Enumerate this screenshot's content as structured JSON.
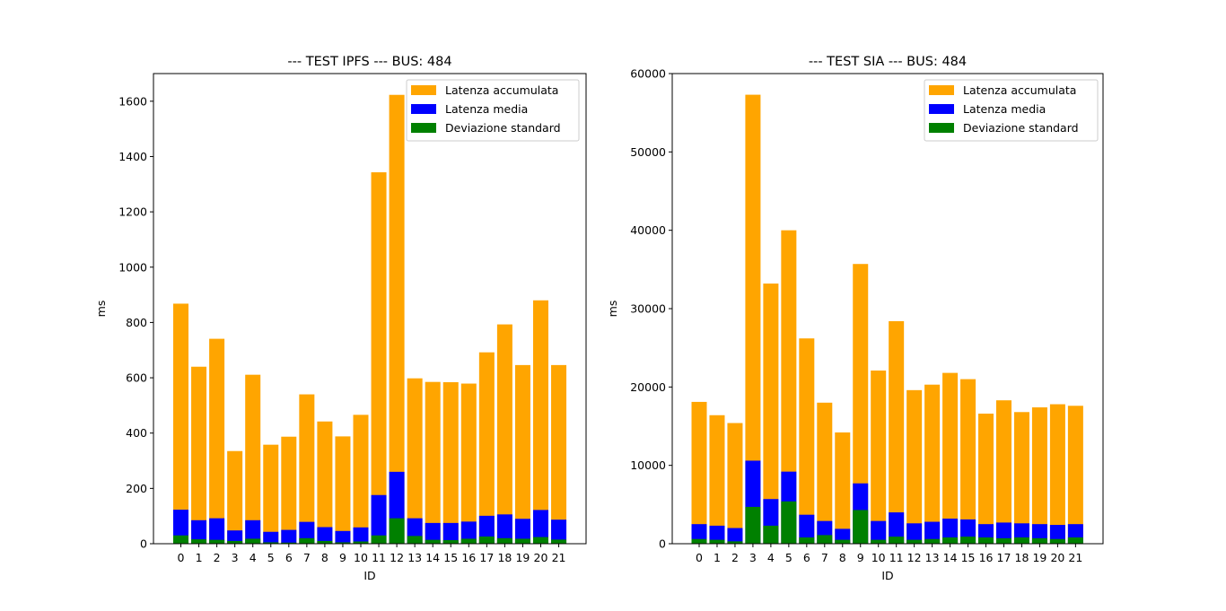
{
  "chart_data": [
    {
      "type": "bar",
      "stacked_overlay": true,
      "title": "--- TEST IPFS --- BUS: 484",
      "xlabel": "ID",
      "ylabel": "ms",
      "categories": [
        "0",
        "1",
        "2",
        "3",
        "4",
        "5",
        "6",
        "7",
        "8",
        "9",
        "10",
        "11",
        "12",
        "13",
        "14",
        "15",
        "16",
        "17",
        "18",
        "19",
        "20",
        "21"
      ],
      "ylim": [
        0,
        1700
      ],
      "yticks": [
        0,
        200,
        400,
        600,
        800,
        1000,
        1200,
        1400,
        1600
      ],
      "ytick_labels": [
        "0",
        "200",
        "400",
        "600",
        "800",
        "1000",
        "1200",
        "1400",
        "1600"
      ],
      "legend_position": "upper right",
      "grid": false,
      "series": [
        {
          "name": "Latenza accumulata",
          "color": "#ffa500",
          "values": [
            868,
            640,
            741,
            335,
            611,
            358,
            387,
            540,
            442,
            388,
            466,
            1343,
            1623,
            598,
            585,
            584,
            579,
            692,
            793,
            646,
            880,
            646
          ]
        },
        {
          "name": "Latenza media",
          "color": "#0000ff",
          "values": [
            123,
            85,
            92,
            48,
            85,
            43,
            50,
            79,
            60,
            46,
            59,
            176,
            260,
            92,
            75,
            75,
            80,
            101,
            106,
            90,
            122,
            87
          ]
        },
        {
          "name": "Deviazione standard",
          "color": "#008000",
          "values": [
            30,
            16,
            14,
            10,
            18,
            5,
            4,
            20,
            10,
            5,
            8,
            30,
            92,
            28,
            14,
            13,
            18,
            26,
            20,
            18,
            24,
            15
          ]
        }
      ]
    },
    {
      "type": "bar",
      "stacked_overlay": true,
      "title": "--- TEST SIA --- BUS: 484",
      "xlabel": "ID",
      "ylabel": "ms",
      "categories": [
        "0",
        "1",
        "2",
        "3",
        "4",
        "5",
        "6",
        "7",
        "8",
        "9",
        "10",
        "11",
        "12",
        "13",
        "14",
        "15",
        "16",
        "17",
        "18",
        "19",
        "20",
        "21"
      ],
      "ylim": [
        0,
        60000
      ],
      "yticks": [
        0,
        10000,
        20000,
        30000,
        40000,
        50000,
        60000
      ],
      "ytick_labels": [
        "0",
        "10000",
        "20000",
        "30000",
        "40000",
        "50000",
        "60000"
      ],
      "legend_position": "upper right",
      "grid": false,
      "series": [
        {
          "name": "Latenza accumulata",
          "color": "#ffa500",
          "values": [
            18100,
            16400,
            15400,
            57300,
            33200,
            40000,
            26200,
            18000,
            14200,
            35700,
            22100,
            28400,
            19600,
            20300,
            21800,
            21000,
            16600,
            18300,
            16800,
            17400,
            17800,
            17600
          ]
        },
        {
          "name": "Latenza media",
          "color": "#0000ff",
          "values": [
            2500,
            2300,
            2000,
            10600,
            5700,
            9200,
            3700,
            2900,
            1900,
            7700,
            2900,
            4000,
            2600,
            2800,
            3200,
            3100,
            2500,
            2700,
            2600,
            2500,
            2400,
            2500
          ]
        },
        {
          "name": "Deviazione standard",
          "color": "#008000",
          "values": [
            600,
            500,
            300,
            4700,
            2300,
            5400,
            800,
            1100,
            500,
            4300,
            500,
            900,
            500,
            600,
            800,
            900,
            800,
            700,
            800,
            700,
            600,
            800
          ]
        }
      ]
    }
  ]
}
